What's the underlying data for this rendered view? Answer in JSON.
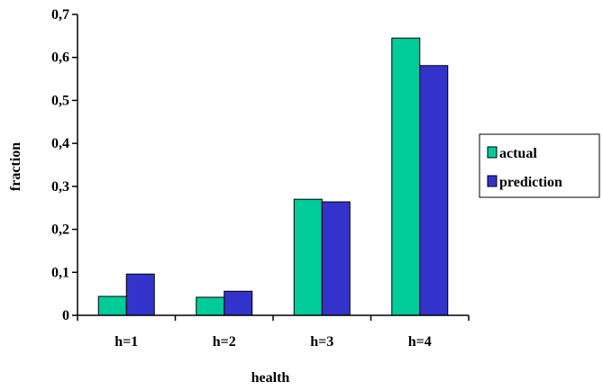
{
  "chart_data": {
    "type": "bar",
    "title": "",
    "xlabel": "health",
    "ylabel": "fraction",
    "categories": [
      "h=1",
      "h=2",
      "h=3",
      "h=4"
    ],
    "series": [
      {
        "name": "actual",
        "values": [
          0.044,
          0.042,
          0.27,
          0.645
        ],
        "color": "#00CC99"
      },
      {
        "name": "prediction",
        "values": [
          0.096,
          0.056,
          0.264,
          0.581
        ],
        "color": "#3333CC"
      }
    ],
    "ylim": [
      0,
      0.7
    ],
    "yticks": [
      "0",
      "0,1",
      "0,2",
      "0,3",
      "0,4",
      "0,5",
      "0,6",
      "0,7"
    ],
    "grid": false,
    "legend_position": "right"
  }
}
